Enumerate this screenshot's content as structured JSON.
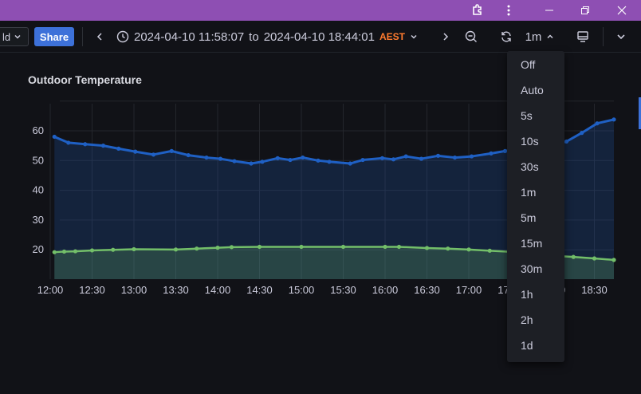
{
  "titlebar": {
    "color": "#8e4fb3",
    "icons": [
      "extension-icon",
      "more-vertical-icon",
      "minimize-icon",
      "restore-icon",
      "close-icon"
    ]
  },
  "toolbar": {
    "partial_button_label": "ld",
    "share_label": "Share",
    "time_from": "2024-04-10 11:58:07",
    "time_to_word": "to",
    "time_to": "2024-04-10 18:44:01",
    "timezone": "AEST",
    "refresh_interval": "1m"
  },
  "panel": {
    "title": "Outdoor Temperature"
  },
  "dropdown": {
    "options": [
      "Off",
      "Auto",
      "5s",
      "10s",
      "30s",
      "1m",
      "5m",
      "15m",
      "30m",
      "1h",
      "2h",
      "1d"
    ]
  },
  "chart_data": {
    "type": "line",
    "title": "Outdoor Temperature",
    "xlabel": "",
    "ylabel": "",
    "ylim": [
      10,
      70
    ],
    "yticks": [
      20,
      30,
      40,
      50,
      60
    ],
    "xticks": [
      "12:00",
      "12:30",
      "13:00",
      "13:30",
      "14:00",
      "14:30",
      "15:00",
      "15:30",
      "16:00",
      "16:30",
      "17:00",
      "17:30",
      "18:00",
      "18:30"
    ],
    "grid": true,
    "legend": "none",
    "series": [
      {
        "name": "series-blue",
        "color": "#1f60c4",
        "x": [
          "12:03",
          "12:13",
          "12:25",
          "12:38",
          "12:49",
          "13:01",
          "13:14",
          "13:27",
          "13:39",
          "13:52",
          "14:02",
          "14:12",
          "14:24",
          "14:32",
          "14:43",
          "14:52",
          "15:01",
          "15:12",
          "15:20",
          "15:35",
          "15:44",
          "15:58",
          "16:06",
          "16:15",
          "16:26",
          "16:38",
          "16:50",
          "17:02",
          "17:16",
          "17:26",
          "17:42",
          "17:56",
          "18:10",
          "18:21",
          "18:32",
          "18:44"
        ],
        "values": [
          58,
          56,
          55.5,
          55,
          54,
          53,
          52,
          53.2,
          51.8,
          51,
          50.6,
          49.8,
          49,
          49.6,
          50.8,
          50.2,
          51,
          50,
          49.6,
          49,
          50.2,
          50.8,
          50.4,
          51.4,
          50.6,
          51.6,
          51,
          51.4,
          52.4,
          53.2,
          54.2,
          54.8,
          56.4,
          59.3,
          62.5,
          63.8
        ]
      },
      {
        "name": "series-green",
        "color": "#73bf69",
        "x": [
          "12:03",
          "12:10",
          "12:18",
          "12:30",
          "12:45",
          "13:00",
          "13:30",
          "13:45",
          "14:00",
          "14:10",
          "14:30",
          "15:00",
          "15:30",
          "16:00",
          "16:10",
          "16:30",
          "16:45",
          "17:00",
          "17:15",
          "17:30",
          "18:00",
          "18:15",
          "18:30",
          "18:44"
        ],
        "values": [
          19.2,
          19.4,
          19.5,
          19.8,
          20,
          20.2,
          20.1,
          20.4,
          20.7,
          20.9,
          21,
          21,
          21,
          21,
          21,
          20.6,
          20.4,
          20.1,
          19.7,
          19.3,
          18,
          17.6,
          17.1,
          16.6
        ]
      }
    ]
  }
}
